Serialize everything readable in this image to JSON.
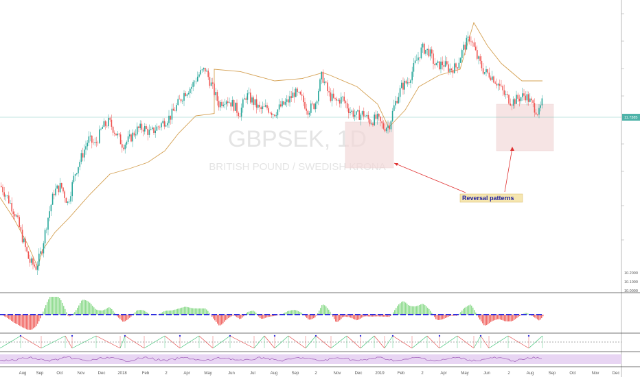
{
  "chart_data": {
    "type": "candlestick",
    "symbol_watermark": "GBPSEK, 1D",
    "subtitle_watermark": "BRITISH POUND / SWEDISH KRONA",
    "last_price_label": "11.7385",
    "y_tick_labels": [
      "10.2000",
      "10.1000",
      "10.0000"
    ],
    "x_tick_labels": [
      "Aug",
      "Sep",
      "Oct",
      "Nov",
      "Dec",
      "2018",
      "Feb",
      "2",
      "Apr",
      "May",
      "Jun",
      "Jul",
      "Aug",
      "Sep",
      "2",
      "Nov",
      "Dec",
      "2019",
      "Feb",
      "2",
      "Apr",
      "May",
      "Jun",
      "2",
      "Aug",
      "Sep",
      "Oct",
      "Nov",
      "Dec"
    ],
    "price_path": [
      {
        "t": 0,
        "v": 11.0
      },
      {
        "t": 10,
        "v": 10.9
      },
      {
        "t": 22,
        "v": 10.75
      },
      {
        "t": 32,
        "v": 10.55
      },
      {
        "t": 42,
        "v": 10.35
      },
      {
        "t": 52,
        "v": 10.3
      },
      {
        "t": 60,
        "v": 10.45
      },
      {
        "t": 68,
        "v": 10.7
      },
      {
        "t": 78,
        "v": 10.95
      },
      {
        "t": 88,
        "v": 11.0
      },
      {
        "t": 98,
        "v": 10.85
      },
      {
        "t": 108,
        "v": 11.1
      },
      {
        "t": 118,
        "v": 11.25
      },
      {
        "t": 128,
        "v": 11.4
      },
      {
        "t": 138,
        "v": 11.35
      },
      {
        "t": 148,
        "v": 11.5
      },
      {
        "t": 158,
        "v": 11.55
      },
      {
        "t": 168,
        "v": 11.45
      },
      {
        "t": 178,
        "v": 11.35
      },
      {
        "t": 188,
        "v": 11.4
      },
      {
        "t": 198,
        "v": 11.48
      },
      {
        "t": 208,
        "v": 11.5
      },
      {
        "t": 218,
        "v": 11.45
      },
      {
        "t": 228,
        "v": 11.5
      },
      {
        "t": 238,
        "v": 11.55
      },
      {
        "t": 248,
        "v": 11.6
      },
      {
        "t": 258,
        "v": 11.7
      },
      {
        "t": 268,
        "v": 11.8
      },
      {
        "t": 278,
        "v": 11.85
      },
      {
        "t": 288,
        "v": 11.95
      },
      {
        "t": 298,
        "v": 12.0
      },
      {
        "t": 308,
        "v": 11.85
      },
      {
        "t": 318,
        "v": 11.7
      },
      {
        "t": 328,
        "v": 11.75
      },
      {
        "t": 338,
        "v": 11.7
      },
      {
        "t": 348,
        "v": 11.62
      },
      {
        "t": 358,
        "v": 11.78
      },
      {
        "t": 368,
        "v": 11.72
      },
      {
        "t": 378,
        "v": 11.65
      },
      {
        "t": 388,
        "v": 11.67
      },
      {
        "t": 398,
        "v": 11.62
      },
      {
        "t": 408,
        "v": 11.68
      },
      {
        "t": 418,
        "v": 11.72
      },
      {
        "t": 428,
        "v": 11.8
      },
      {
        "t": 438,
        "v": 11.75
      },
      {
        "t": 448,
        "v": 11.65
      },
      {
        "t": 458,
        "v": 11.7
      },
      {
        "t": 468,
        "v": 11.95
      },
      {
        "t": 478,
        "v": 11.78
      },
      {
        "t": 488,
        "v": 11.72
      },
      {
        "t": 498,
        "v": 11.75
      },
      {
        "t": 508,
        "v": 11.65
      },
      {
        "t": 518,
        "v": 11.6
      },
      {
        "t": 528,
        "v": 11.62
      },
      {
        "t": 538,
        "v": 11.55
      },
      {
        "t": 548,
        "v": 11.58
      },
      {
        "t": 558,
        "v": 11.5
      },
      {
        "t": 566,
        "v": 11.52
      },
      {
        "t": 574,
        "v": 11.7
      },
      {
        "t": 584,
        "v": 11.85
      },
      {
        "t": 594,
        "v": 11.9
      },
      {
        "t": 604,
        "v": 12.05
      },
      {
        "t": 614,
        "v": 12.18
      },
      {
        "t": 624,
        "v": 12.15
      },
      {
        "t": 634,
        "v": 12.02
      },
      {
        "t": 644,
        "v": 12.05
      },
      {
        "t": 654,
        "v": 12.0
      },
      {
        "t": 664,
        "v": 12.02
      },
      {
        "t": 674,
        "v": 12.18
      },
      {
        "t": 684,
        "v": 12.28
      },
      {
        "t": 694,
        "v": 12.1
      },
      {
        "t": 704,
        "v": 11.98
      },
      {
        "t": 714,
        "v": 11.95
      },
      {
        "t": 724,
        "v": 11.88
      },
      {
        "t": 734,
        "v": 11.78
      },
      {
        "t": 744,
        "v": 11.72
      },
      {
        "t": 754,
        "v": 11.75
      },
      {
        "t": 764,
        "v": 11.78
      },
      {
        "t": 774,
        "v": 11.7
      },
      {
        "t": 784,
        "v": 11.62
      },
      {
        "t": 790,
        "v": 11.74
      }
    ],
    "trailing_stop_path": [
      {
        "t": 0,
        "v": 10.9
      },
      {
        "t": 20,
        "v": 10.72
      },
      {
        "t": 40,
        "v": 10.5
      },
      {
        "t": 55,
        "v": 10.3
      },
      {
        "t": 62,
        "v": 10.45
      },
      {
        "t": 80,
        "v": 10.6
      },
      {
        "t": 100,
        "v": 10.72
      },
      {
        "t": 130,
        "v": 10.92
      },
      {
        "t": 160,
        "v": 11.1
      },
      {
        "t": 190,
        "v": 11.15
      },
      {
        "t": 215,
        "v": 11.2
      },
      {
        "t": 240,
        "v": 11.3
      },
      {
        "t": 260,
        "v": 11.45
      },
      {
        "t": 285,
        "v": 11.6
      },
      {
        "t": 312,
        "v": 11.62
      },
      {
        "t": 312,
        "v": 12.0
      },
      {
        "t": 350,
        "v": 11.98
      },
      {
        "t": 400,
        "v": 11.9
      },
      {
        "t": 440,
        "v": 11.92
      },
      {
        "t": 470,
        "v": 11.97
      },
      {
        "t": 480,
        "v": 11.95
      },
      {
        "t": 520,
        "v": 11.85
      },
      {
        "t": 550,
        "v": 11.7
      },
      {
        "t": 566,
        "v": 11.5
      },
      {
        "t": 590,
        "v": 11.65
      },
      {
        "t": 610,
        "v": 11.85
      },
      {
        "t": 640,
        "v": 11.95
      },
      {
        "t": 670,
        "v": 12.0
      },
      {
        "t": 690,
        "v": 12.4
      },
      {
        "t": 710,
        "v": 12.2
      },
      {
        "t": 730,
        "v": 12.05
      },
      {
        "t": 760,
        "v": 11.9
      },
      {
        "t": 790,
        "v": 11.9
      }
    ],
    "annotation": "Reversal patterns",
    "highlight_boxes": [
      {
        "t_start": 503,
        "t_end": 573
      },
      {
        "t_start": 723,
        "t_end": 806
      }
    ],
    "colors": {
      "up": "#26a69a",
      "down": "#ef5350",
      "stop": "#d4a052",
      "lastprice": "#4fb3a9",
      "box": "#f3d9d9",
      "arrow": "#e03030",
      "label_bg": "#f5e6b0",
      "hist_pos": "#7fd67f",
      "hist_neg": "#ef5350",
      "zero": "#3030e0",
      "rsi_band": "#e8d5f3"
    }
  }
}
